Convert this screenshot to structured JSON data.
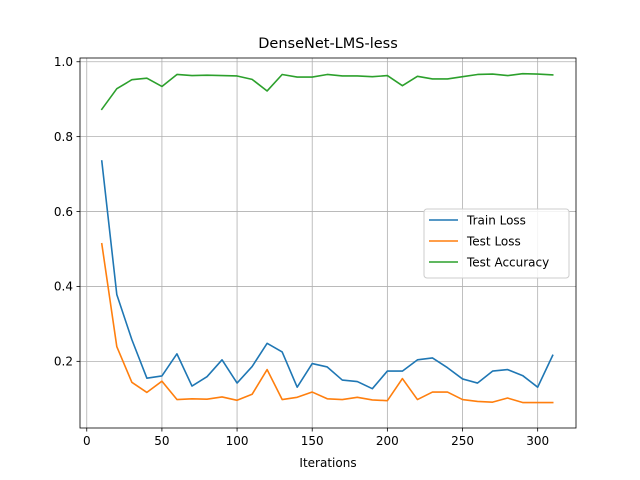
{
  "chart_data": {
    "type": "line",
    "title": "DenseNet-LMS-less",
    "xlabel": "Iterations",
    "ylabel": "",
    "xlim": [
      -4.5,
      325.5
    ],
    "ylim": [
      0.022,
      1.01
    ],
    "xticks": [
      0,
      50,
      100,
      150,
      200,
      250,
      300
    ],
    "yticks": [
      0.2,
      0.4,
      0.6,
      0.8,
      1.0
    ],
    "ytick_labels": [
      "0.2",
      "0.4",
      "0.6",
      "0.8",
      "1.0"
    ],
    "grid": true,
    "legend_position": "center-right",
    "x": [
      10,
      20,
      30,
      40,
      50,
      60,
      70,
      80,
      90,
      100,
      110,
      120,
      130,
      140,
      150,
      160,
      170,
      180,
      190,
      200,
      210,
      220,
      230,
      240,
      250,
      260,
      270,
      280,
      290,
      300,
      310
    ],
    "series": [
      {
        "name": "Train Loss",
        "color": "#1f77b4",
        "values": [
          0.735,
          0.378,
          0.258,
          0.155,
          0.161,
          0.22,
          0.134,
          0.159,
          0.204,
          0.142,
          0.186,
          0.248,
          0.225,
          0.131,
          0.194,
          0.185,
          0.15,
          0.146,
          0.127,
          0.174,
          0.174,
          0.204,
          0.209,
          0.183,
          0.153,
          0.142,
          0.174,
          0.178,
          0.162,
          0.131,
          0.216
        ]
      },
      {
        "name": "Test Loss",
        "color": "#ff7f0e",
        "values": [
          0.514,
          0.239,
          0.144,
          0.117,
          0.147,
          0.098,
          0.1,
          0.099,
          0.105,
          0.096,
          0.112,
          0.178,
          0.098,
          0.104,
          0.118,
          0.1,
          0.098,
          0.104,
          0.097,
          0.095,
          0.154,
          0.098,
          0.118,
          0.118,
          0.098,
          0.093,
          0.091,
          0.102,
          0.09,
          0.09,
          0.09
        ]
      },
      {
        "name": "Test Accuracy",
        "color": "#2ca02c",
        "values": [
          0.873,
          0.928,
          0.952,
          0.956,
          0.934,
          0.966,
          0.963,
          0.964,
          0.963,
          0.962,
          0.953,
          0.922,
          0.966,
          0.959,
          0.959,
          0.966,
          0.962,
          0.962,
          0.96,
          0.963,
          0.936,
          0.961,
          0.954,
          0.954,
          0.96,
          0.966,
          0.967,
          0.963,
          0.968,
          0.967,
          0.965
        ]
      }
    ]
  }
}
